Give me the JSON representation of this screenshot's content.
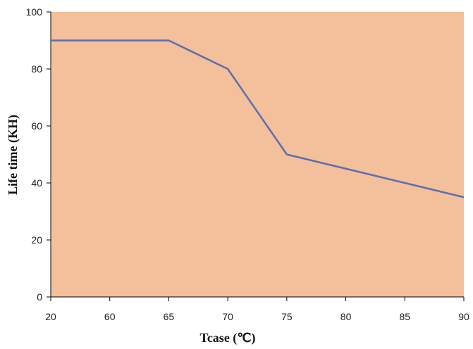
{
  "chart_data": {
    "type": "line",
    "title": "",
    "xlabel": "Tcase (℃)",
    "ylabel": "Life time (KH)",
    "categories": [
      "20",
      "60",
      "65",
      "70",
      "75",
      "80",
      "85",
      "90"
    ],
    "ylim": [
      0,
      100
    ],
    "y_ticks": [
      "0",
      "20",
      "40",
      "60",
      "80",
      "100"
    ],
    "grid": false,
    "series": [
      {
        "values": [
          90,
          90,
          90,
          80,
          50,
          null,
          null,
          35
        ]
      }
    ],
    "colors": {
      "plot_background": "#f4bf9b",
      "line": "#5a6fae",
      "axis": "#000000"
    }
  }
}
